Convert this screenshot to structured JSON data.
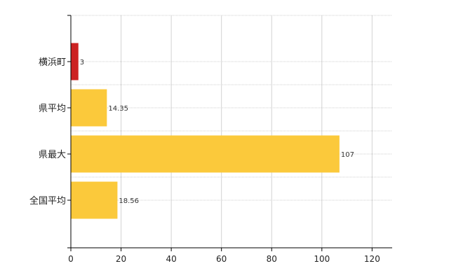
{
  "chart_data": {
    "type": "bar",
    "orientation": "horizontal",
    "categories": [
      "横浜町",
      "県平均",
      "県最大",
      "全国平均"
    ],
    "values": [
      3,
      14.35,
      107,
      18.56
    ],
    "value_labels": [
      "3",
      "14.35",
      "107",
      "18.56"
    ],
    "colors": [
      "#cc2222",
      "#fbc93b",
      "#fbc93b",
      "#fbc93b"
    ],
    "xlim": [
      0,
      128
    ],
    "xticks": [
      0,
      20,
      40,
      60,
      80,
      100,
      120
    ],
    "grid": true,
    "title": "",
    "xlabel": "",
    "ylabel": ""
  }
}
